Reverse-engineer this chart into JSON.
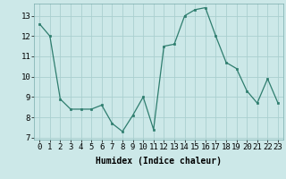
{
  "x": [
    0,
    1,
    2,
    3,
    4,
    5,
    6,
    7,
    8,
    9,
    10,
    11,
    12,
    13,
    14,
    15,
    16,
    17,
    18,
    19,
    20,
    21,
    22,
    23
  ],
  "y": [
    12.6,
    12.0,
    8.9,
    8.4,
    8.4,
    8.4,
    8.6,
    7.7,
    7.3,
    8.1,
    9.0,
    7.4,
    11.5,
    11.6,
    13.0,
    13.3,
    13.4,
    12.0,
    10.7,
    10.4,
    9.3,
    8.7,
    9.9,
    8.7
  ],
  "xlabel": "Humidex (Indice chaleur)",
  "line_color": "#2e7d6e",
  "marker_color": "#2e7d6e",
  "bg_color": "#cce8e8",
  "grid_color": "#aacfcf",
  "ylim": [
    6.9,
    13.6
  ],
  "xlim": [
    -0.5,
    23.5
  ],
  "yticks": [
    7,
    8,
    9,
    10,
    11,
    12,
    13
  ],
  "xticks": [
    0,
    1,
    2,
    3,
    4,
    5,
    6,
    7,
    8,
    9,
    10,
    11,
    12,
    13,
    14,
    15,
    16,
    17,
    18,
    19,
    20,
    21,
    22,
    23
  ],
  "xlabel_fontsize": 7,
  "tick_fontsize": 6.5
}
